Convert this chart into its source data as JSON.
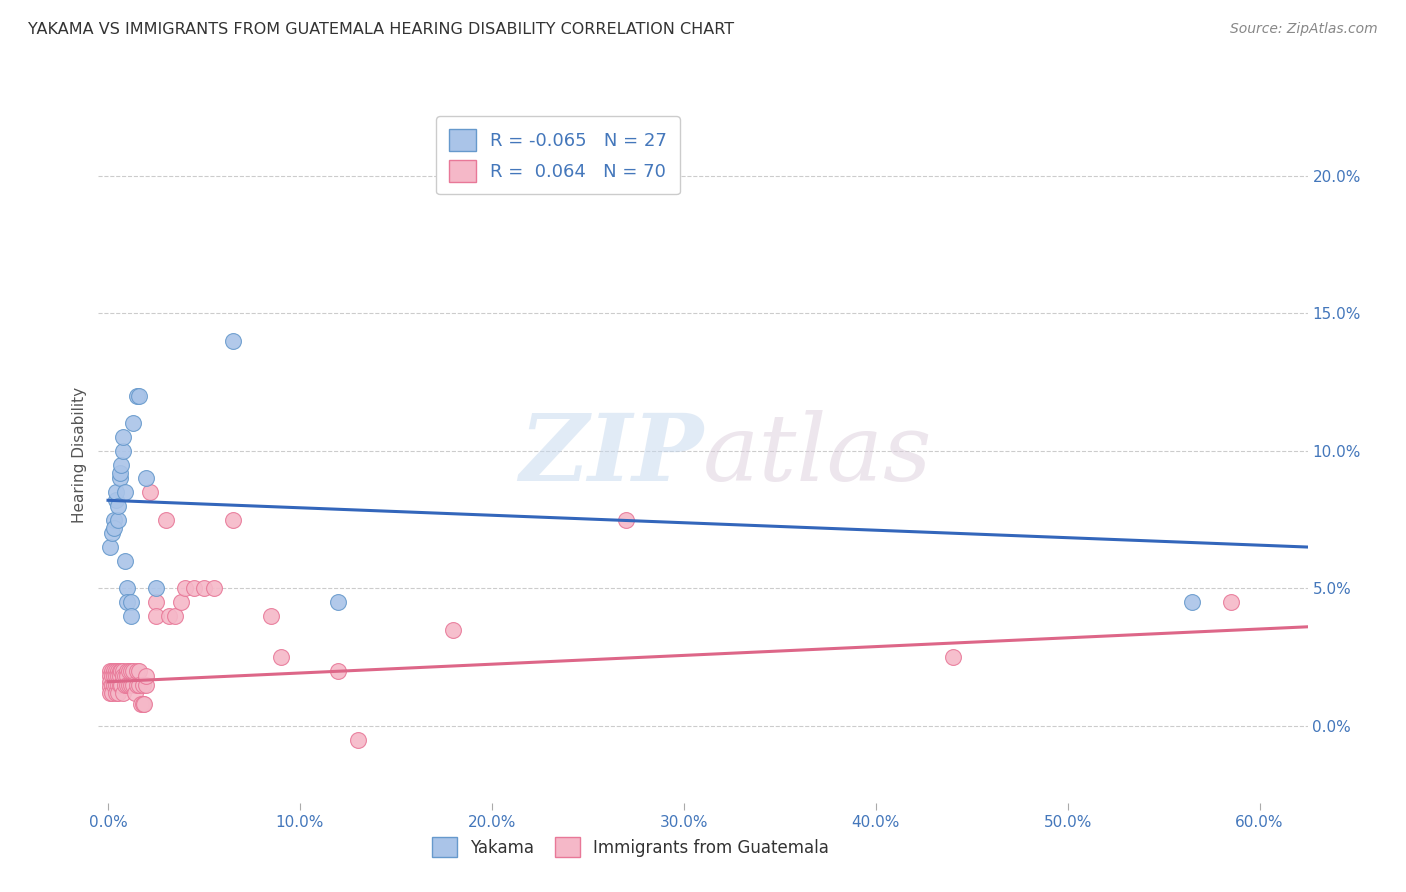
{
  "title": "YAKAMA VS IMMIGRANTS FROM GUATEMALA HEARING DISABILITY CORRELATION CHART",
  "source": "Source: ZipAtlas.com",
  "ylabel": "Hearing Disability",
  "xlabel_ticks": [
    "0.0%",
    "10.0%",
    "20.0%",
    "30.0%",
    "40.0%",
    "50.0%",
    "60.0%"
  ],
  "xlabel_vals": [
    0.0,
    0.1,
    0.2,
    0.3,
    0.4,
    0.5,
    0.6
  ],
  "ylabel_ticks_right": [
    "0.0%",
    "5.0%",
    "10.0%",
    "15.0%",
    "20.0%"
  ],
  "ylabel_vals_right": [
    0.0,
    0.05,
    0.1,
    0.15,
    0.2
  ],
  "xlim": [
    -0.005,
    0.625
  ],
  "ylim": [
    -0.028,
    0.225
  ],
  "legend": {
    "blue_R": "-0.065",
    "blue_N": "27",
    "pink_R": "0.064",
    "pink_N": "70"
  },
  "blue_scatter_x": [
    0.001,
    0.002,
    0.003,
    0.003,
    0.004,
    0.004,
    0.005,
    0.005,
    0.006,
    0.006,
    0.007,
    0.008,
    0.008,
    0.009,
    0.009,
    0.01,
    0.01,
    0.012,
    0.012,
    0.013,
    0.015,
    0.016,
    0.02,
    0.025,
    0.065,
    0.12,
    0.565
  ],
  "blue_scatter_y": [
    0.065,
    0.07,
    0.075,
    0.072,
    0.082,
    0.085,
    0.075,
    0.08,
    0.09,
    0.092,
    0.095,
    0.1,
    0.105,
    0.085,
    0.06,
    0.05,
    0.045,
    0.045,
    0.04,
    0.11,
    0.12,
    0.12,
    0.09,
    0.05,
    0.14,
    0.045,
    0.045
  ],
  "pink_scatter_x": [
    0.001,
    0.001,
    0.001,
    0.001,
    0.001,
    0.002,
    0.002,
    0.002,
    0.002,
    0.003,
    0.003,
    0.003,
    0.004,
    0.004,
    0.004,
    0.004,
    0.005,
    0.005,
    0.005,
    0.005,
    0.006,
    0.006,
    0.006,
    0.007,
    0.007,
    0.008,
    0.008,
    0.008,
    0.009,
    0.009,
    0.01,
    0.01,
    0.01,
    0.011,
    0.011,
    0.012,
    0.012,
    0.013,
    0.013,
    0.014,
    0.015,
    0.015,
    0.016,
    0.016,
    0.017,
    0.018,
    0.018,
    0.019,
    0.02,
    0.02,
    0.022,
    0.025,
    0.025,
    0.03,
    0.032,
    0.035,
    0.038,
    0.04,
    0.045,
    0.05,
    0.055,
    0.065,
    0.085,
    0.09,
    0.12,
    0.13,
    0.18,
    0.27,
    0.44,
    0.585
  ],
  "pink_scatter_y": [
    0.02,
    0.018,
    0.016,
    0.014,
    0.012,
    0.02,
    0.018,
    0.015,
    0.012,
    0.02,
    0.018,
    0.015,
    0.02,
    0.018,
    0.015,
    0.012,
    0.02,
    0.018,
    0.015,
    0.012,
    0.02,
    0.018,
    0.015,
    0.02,
    0.015,
    0.02,
    0.018,
    0.012,
    0.018,
    0.015,
    0.02,
    0.018,
    0.015,
    0.02,
    0.015,
    0.02,
    0.015,
    0.02,
    0.015,
    0.012,
    0.02,
    0.015,
    0.02,
    0.015,
    0.008,
    0.008,
    0.015,
    0.008,
    0.015,
    0.018,
    0.085,
    0.045,
    0.04,
    0.075,
    0.04,
    0.04,
    0.045,
    0.05,
    0.05,
    0.05,
    0.05,
    0.075,
    0.04,
    0.025,
    0.02,
    -0.005,
    0.035,
    0.075,
    0.025,
    0.045
  ],
  "blue_line_x": [
    0.0,
    0.625
  ],
  "blue_line_y": [
    0.082,
    0.065
  ],
  "pink_line_x": [
    0.0,
    0.625
  ],
  "pink_line_y": [
    0.016,
    0.036
  ],
  "watermark_zip": "ZIP",
  "watermark_atlas": "atlas",
  "blue_color": "#aac4e8",
  "pink_color": "#f5b8c8",
  "blue_edge_color": "#6699cc",
  "pink_edge_color": "#e87898",
  "blue_line_color": "#3366bb",
  "pink_line_color": "#dd6688",
  "background_color": "#ffffff",
  "grid_color": "#cccccc",
  "grid_style": "--"
}
